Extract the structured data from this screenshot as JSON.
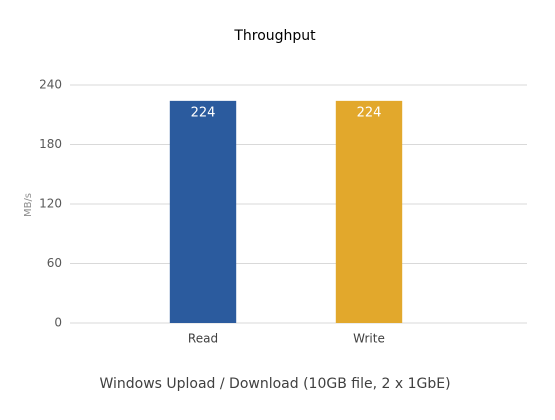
{
  "chart_data": {
    "type": "bar",
    "title": "Throughput",
    "x_label": "Windows Upload / Download (10GB file, 2 x 1GbE)",
    "y_label": "MB/s",
    "categories": [
      "Read",
      "Write"
    ],
    "values": [
      224,
      224
    ],
    "colors": [
      "#2b5b9e",
      "#e2a82c"
    ],
    "ylim": [
      0,
      240
    ],
    "yticks": [
      0,
      60,
      120,
      180,
      240
    ],
    "grid": true
  }
}
